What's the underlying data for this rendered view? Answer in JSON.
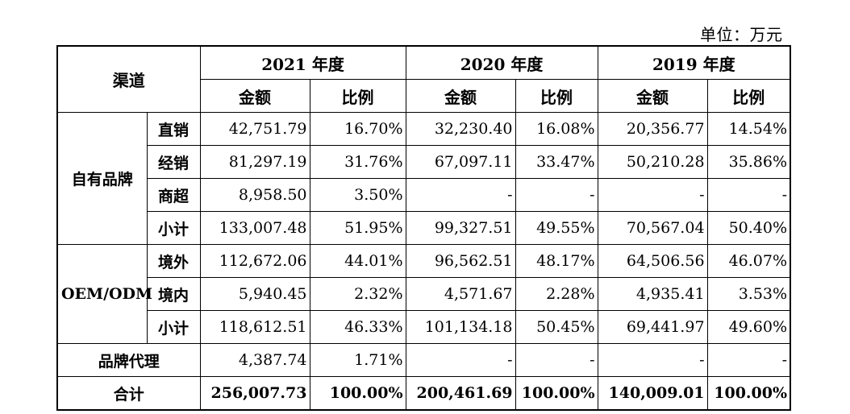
{
  "unit": "单位：万元",
  "header": {
    "channel": "渠道",
    "years": [
      "2021 年度",
      "2020 年度",
      "2019 年度"
    ],
    "amount": "金额",
    "ratio": "比例"
  },
  "groups": {
    "own_brand": "自有品牌",
    "oem": "OEM/ODM",
    "agency": "品牌代理",
    "total": "合计"
  },
  "rows": {
    "direct": {
      "label": "直销",
      "cells": [
        "42,751.79",
        "16.70%",
        "32,230.40",
        "16.08%",
        "20,356.77",
        "14.54%"
      ]
    },
    "dist": {
      "label": "经销",
      "cells": [
        "81,297.19",
        "31.76%",
        "67,097.11",
        "33.47%",
        "50,210.28",
        "35.86%"
      ]
    },
    "super": {
      "label": "商超",
      "cells": [
        "8,958.50",
        "3.50%",
        "-",
        "-",
        "-",
        "-"
      ]
    },
    "sub1": {
      "label": "小计",
      "cells": [
        "133,007.48",
        "51.95%",
        "99,327.51",
        "49.55%",
        "70,567.04",
        "50.40%"
      ]
    },
    "abroad": {
      "label": "境外",
      "cells": [
        "112,672.06",
        "44.01%",
        "96,562.51",
        "48.17%",
        "64,506.56",
        "46.07%"
      ]
    },
    "domestic": {
      "label": "境内",
      "cells": [
        "5,940.45",
        "2.32%",
        "4,571.67",
        "2.28%",
        "4,935.41",
        "3.53%"
      ]
    },
    "sub2": {
      "label": "小计",
      "cells": [
        "118,612.51",
        "46.33%",
        "101,134.18",
        "50.45%",
        "69,441.97",
        "49.60%"
      ]
    },
    "agency": {
      "cells": [
        "4,387.74",
        "1.71%",
        "-",
        "-",
        "-",
        "-"
      ]
    },
    "total": {
      "cells": [
        "256,007.73",
        "100.00%",
        "200,461.69",
        "100.00%",
        "140,009.01",
        "100.00%"
      ]
    }
  }
}
